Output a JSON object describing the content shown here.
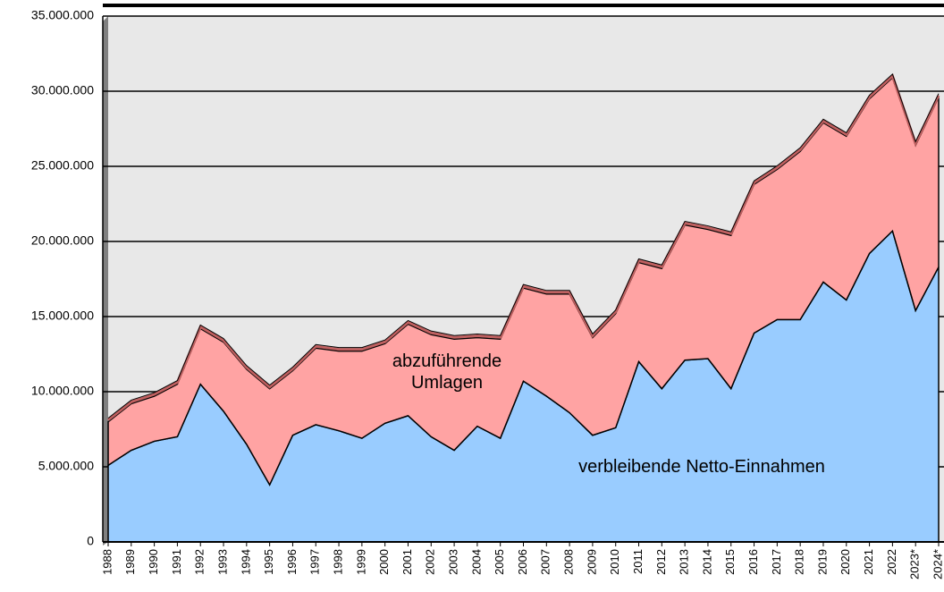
{
  "chart_data": {
    "type": "stacked-area",
    "categories": [
      "1988",
      "1989",
      "1990",
      "1991",
      "1992",
      "1993",
      "1994",
      "1995",
      "1996",
      "1997",
      "1998",
      "1999",
      "2000",
      "2001",
      "2002",
      "2003",
      "2004",
      "2005",
      "2006",
      "2007",
      "2008",
      "2009",
      "2010",
      "2011",
      "2012",
      "2013",
      "2014",
      "2015",
      "2016",
      "2017",
      "2018",
      "2019",
      "2020",
      "2021",
      "2022",
      "2023*",
      "2024*"
    ],
    "series": [
      {
        "name": "verbleibende Netto-Einnahmen",
        "color": "#99ccff",
        "values": [
          5100000,
          6100000,
          6700000,
          7000000,
          10500000,
          8700000,
          6500000,
          3800000,
          7100000,
          7800000,
          7400000,
          6900000,
          7900000,
          8400000,
          7000000,
          6100000,
          7700000,
          6900000,
          10700000,
          9700000,
          8600000,
          7100000,
          7600000,
          12000000,
          10200000,
          12100000,
          12200000,
          10200000,
          13900000,
          14800000,
          14800000,
          17300000,
          16100000,
          19200000,
          20700000,
          15400000,
          18300000
        ]
      },
      {
        "name": "abzuführende Umlagen",
        "color": "#ffa3a3",
        "values": [
          2900000,
          3100000,
          3000000,
          3500000,
          3700000,
          4600000,
          5000000,
          6400000,
          4300000,
          5100000,
          5300000,
          5800000,
          5300000,
          6100000,
          6800000,
          7400000,
          5900000,
          6600000,
          6200000,
          6800000,
          7900000,
          6500000,
          7600000,
          6600000,
          8000000,
          9000000,
          8600000,
          10200000,
          9900000,
          10000000,
          11200000,
          10600000,
          10900000,
          10300000,
          10200000,
          11000000,
          11300000
        ]
      }
    ],
    "ylim": [
      0,
      35000000
    ],
    "yticks": [
      0,
      {
        "value": 5000000,
        "label": "5.000.000"
      },
      {
        "value": 10000000,
        "label": "10.000.000"
      },
      {
        "value": 15000000,
        "label": "15.000.000"
      },
      {
        "value": 20000000,
        "label": "20.000.000"
      },
      {
        "value": 25000000,
        "label": "25.000.000"
      },
      {
        "value": 30000000,
        "label": "30.000.000"
      },
      {
        "value": 35000000,
        "label": "35.000.000"
      }
    ],
    "grid": true
  }
}
